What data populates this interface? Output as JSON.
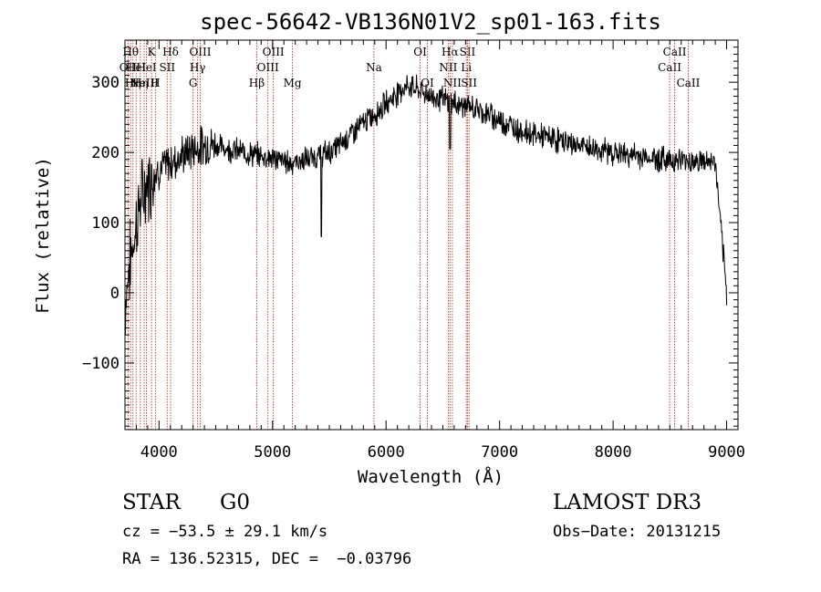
{
  "chart_data": {
    "type": "line",
    "title": "spec-56642-VB136N01V2_sp01-163.fits",
    "xlabel": "Wavelength (Å)",
    "ylabel": "Flux (relative)",
    "xlim": [
      3700,
      9100
    ],
    "ylim": [
      -195,
      360
    ],
    "x_ticks": [
      4000,
      5000,
      6000,
      7000,
      8000,
      9000
    ],
    "y_ticks": [
      -100,
      0,
      100,
      200,
      300
    ],
    "x_tick_labels": [
      "4000",
      "5000",
      "6000",
      "7000",
      "8000",
      "9000"
    ],
    "y_tick_labels": [
      "−100",
      "0",
      "100",
      "200",
      "300"
    ],
    "series": [
      {
        "name": "flux",
        "x": [
          3700,
          3730,
          3760,
          3790,
          3820,
          3850,
          3880,
          3910,
          3950,
          4000,
          4050,
          4100,
          4150,
          4200,
          4250,
          4300,
          4350,
          4400,
          4450,
          4500,
          4550,
          4600,
          4650,
          4700,
          4750,
          4800,
          4850,
          4900,
          4950,
          5000,
          5050,
          5100,
          5150,
          5200,
          5250,
          5300,
          5350,
          5400,
          5450,
          5500,
          5550,
          5600,
          5650,
          5700,
          5750,
          5800,
          5850,
          5900,
          5950,
          6000,
          6050,
          6100,
          6150,
          6200,
          6250,
          6300,
          6350,
          6400,
          6450,
          6500,
          6550,
          6600,
          6650,
          6700,
          6750,
          6800,
          6850,
          6900,
          7000,
          7100,
          7200,
          7300,
          7400,
          7500,
          7600,
          7700,
          7800,
          7900,
          8000,
          8100,
          8200,
          8300,
          8400,
          8500,
          8600,
          8700,
          8800,
          8900,
          9000
        ],
        "values": [
          -20,
          30,
          60,
          90,
          120,
          135,
          150,
          160,
          170,
          175,
          180,
          185,
          190,
          195,
          200,
          205,
          208,
          210,
          212,
          210,
          208,
          206,
          204,
          202,
          200,
          198,
          196,
          195,
          194,
          192,
          190,
          188,
          186,
          186,
          188,
          190,
          192,
          195,
          198,
          200,
          205,
          212,
          220,
          228,
          235,
          242,
          248,
          255,
          262,
          270,
          278,
          285,
          292,
          295,
          292,
          288,
          284,
          280,
          278,
          276,
          272,
          270,
          268,
          266,
          264,
          262,
          258,
          254,
          246,
          238,
          230,
          226,
          222,
          218,
          214,
          210,
          206,
          203,
          200,
          197,
          195,
          193,
          191,
          190,
          189,
          188,
          187,
          186,
          -5
        ]
      }
    ],
    "dips": [
      {
        "x": 5430,
        "value": 80
      },
      {
        "x": 6563,
        "value": 205
      }
    ],
    "line_markers": [
      {
        "x": 3727,
        "label": "OII",
        "row": 1
      },
      {
        "x": 3750,
        "label": "Hθ",
        "row": 0
      },
      {
        "x": 3770,
        "label": "Hη",
        "row": 2
      },
      {
        "x": 3798,
        "label": "HeI",
        "row": 1
      },
      {
        "x": 3835,
        "label": "Hη",
        "row": 2
      },
      {
        "x": 3869,
        "label": "NeIII",
        "row": 2
      },
      {
        "x": 3889,
        "label": "HeI",
        "row": 1
      },
      {
        "x": 3934,
        "label": "K",
        "row": 0
      },
      {
        "x": 3968,
        "label": "H",
        "row": 2
      },
      {
        "x": 4072,
        "label": "SII",
        "row": 1
      },
      {
        "x": 4102,
        "label": "Hδ",
        "row": 0
      },
      {
        "x": 4300,
        "label": "G",
        "row": 2
      },
      {
        "x": 4340,
        "label": "Hγ",
        "row": 1
      },
      {
        "x": 4363,
        "label": "OIII",
        "row": 0
      },
      {
        "x": 4861,
        "label": "Hβ",
        "row": 2
      },
      {
        "x": 4959,
        "label": "OIII",
        "row": 1
      },
      {
        "x": 5007,
        "label": "OIII",
        "row": 0
      },
      {
        "x": 5175,
        "label": "Mg",
        "row": 2
      },
      {
        "x": 5893,
        "label": "Na",
        "row": 1
      },
      {
        "x": 6300,
        "label": "OI",
        "row": 0
      },
      {
        "x": 6364,
        "label": "OI",
        "row": 2
      },
      {
        "x": 6548,
        "label": "NII",
        "row": 1
      },
      {
        "x": 6563,
        "label": "Hα",
        "row": 0
      },
      {
        "x": 6584,
        "label": "NII",
        "row": 2
      },
      {
        "x": 6707,
        "label": "Li",
        "row": 1
      },
      {
        "x": 6717,
        "label": "SII",
        "row": 0
      },
      {
        "x": 6731,
        "label": "SII",
        "row": 2
      },
      {
        "x": 8498,
        "label": "CaII",
        "row": 1
      },
      {
        "x": 8542,
        "label": "CaII",
        "row": 0
      },
      {
        "x": 8662,
        "label": "CaII",
        "row": 2
      }
    ]
  },
  "info": {
    "object_class": "STAR",
    "subclass": "G0",
    "survey": "LAMOST DR3",
    "cz": "cz = −53.5 ± 29.1 km/s",
    "obs_date": "Obs−Date: 20131215",
    "coords": "RA = 136.52315, DEC =  −0.03796"
  }
}
